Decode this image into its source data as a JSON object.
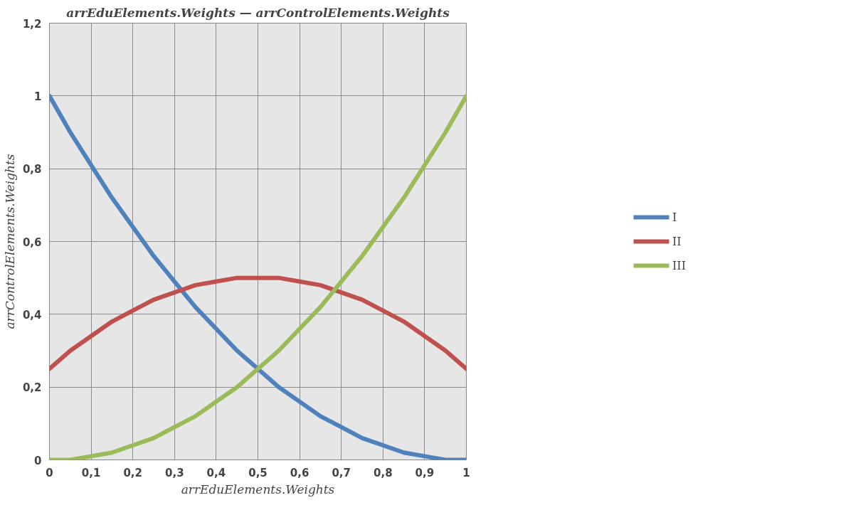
{
  "chart_data": {
    "type": "line",
    "title": "arrEduElements.Weights — arrControlElements.Weights",
    "xlabel": "arrEduElements.Weights",
    "ylabel": "arrControlElements.Weights",
    "x": [
      0,
      0.05,
      0.1,
      0.15,
      0.2,
      0.25,
      0.3,
      0.35,
      0.4,
      0.45,
      0.5,
      0.55,
      0.6,
      0.65,
      0.7,
      0.75,
      0.8,
      0.85,
      0.9,
      0.95,
      1
    ],
    "series": [
      {
        "name": "I",
        "color": "#4f81bd",
        "values": [
          1,
          0.9,
          0.81,
          0.72,
          0.64,
          0.56,
          0.49,
          0.42,
          0.36,
          0.3,
          0.25,
          0.2,
          0.16,
          0.12,
          0.09,
          0.06,
          0.04,
          0.02,
          0.01,
          0,
          0
        ]
      },
      {
        "name": "II",
        "color": "#c0504d",
        "values": [
          0.25,
          0.3,
          0.34,
          0.38,
          0.41,
          0.44,
          0.46,
          0.48,
          0.49,
          0.5,
          0.5,
          0.5,
          0.49,
          0.48,
          0.46,
          0.44,
          0.41,
          0.38,
          0.34,
          0.3,
          0.25
        ]
      },
      {
        "name": "III",
        "color": "#9bbb59",
        "values": [
          0,
          0,
          0.01,
          0.02,
          0.04,
          0.06,
          0.09,
          0.12,
          0.16,
          0.2,
          0.25,
          0.3,
          0.36,
          0.42,
          0.49,
          0.56,
          0.64,
          0.72,
          0.81,
          0.9,
          1
        ]
      }
    ],
    "xlim": [
      0,
      1
    ],
    "ylim": [
      0,
      1.2
    ],
    "xticks": [
      0,
      {
        "value": 0.1,
        "label": "0,1"
      },
      {
        "value": 0.2,
        "label": "0,2"
      },
      {
        "value": 0.3,
        "label": "0,3"
      },
      {
        "value": 0.4,
        "label": "0,4"
      },
      {
        "value": 0.5,
        "label": "0,5"
      },
      {
        "value": 0.6,
        "label": "0,6"
      },
      {
        "value": 0.7,
        "label": "0,7"
      },
      {
        "value": 0.8,
        "label": "0,8"
      },
      {
        "value": 0.9,
        "label": "0,9"
      },
      1
    ],
    "yticks": [
      0,
      {
        "value": 0.2,
        "label": "0,2"
      },
      {
        "value": 0.4,
        "label": "0,4"
      },
      {
        "value": 0.6,
        "label": "0,6"
      },
      {
        "value": 0.8,
        "label": "0,8"
      },
      1,
      {
        "value": 1.2,
        "label": "1,2"
      }
    ],
    "grid": true,
    "legend": "right",
    "marker": "none",
    "line_style": "solid"
  }
}
